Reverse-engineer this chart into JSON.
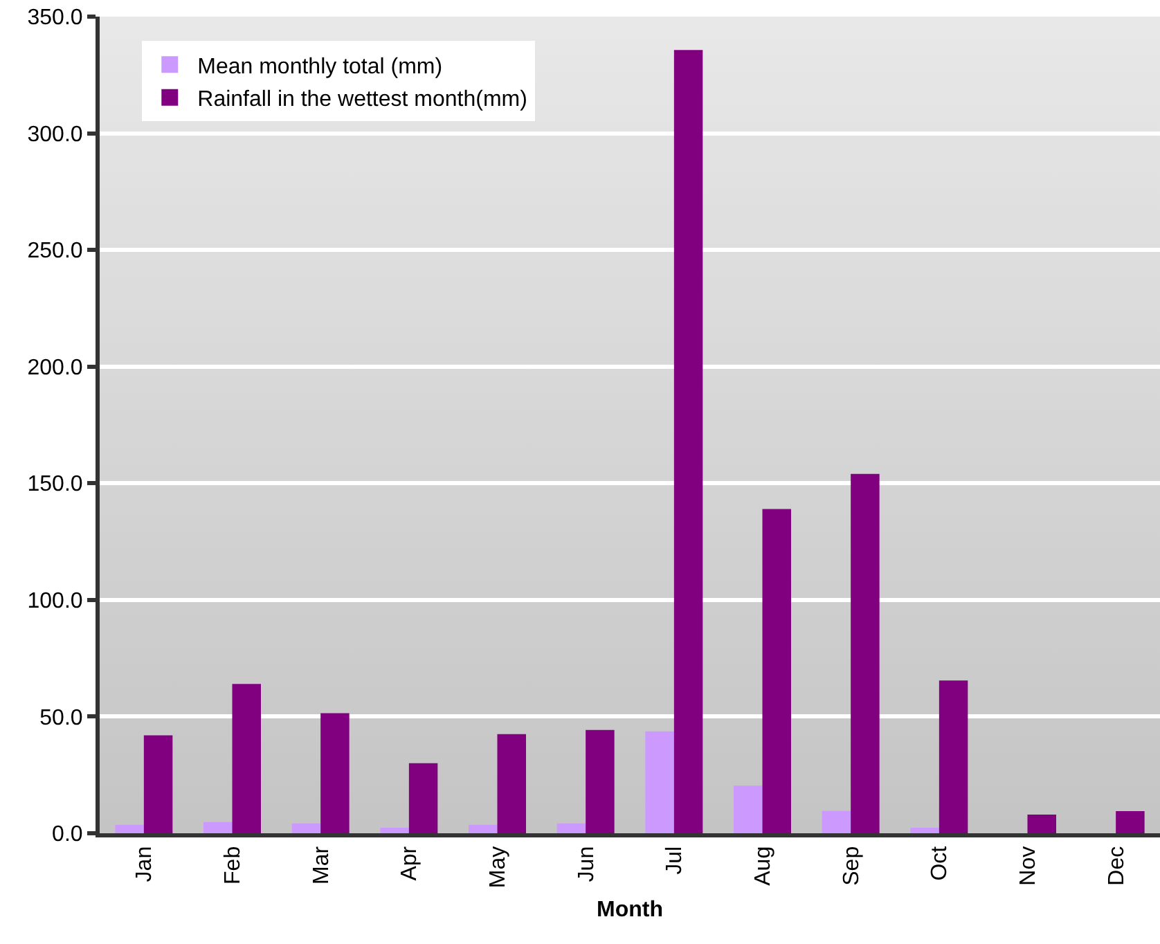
{
  "chart_data": {
    "type": "bar",
    "xlabel": "Month",
    "categories": [
      "Jan",
      "Feb",
      "Mar",
      "Apr",
      "May",
      "Jun",
      "Jul",
      "Aug",
      "Sep",
      "Oct",
      "Nov",
      "Dec"
    ],
    "series": [
      {
        "name": "Mean monthly total (mm)",
        "color": "#cc99ff",
        "values": [
          3.6,
          4.8,
          4.2,
          2.4,
          3.6,
          4.2,
          43.7,
          20.4,
          9.6,
          2.4,
          0,
          0
        ]
      },
      {
        "name": "Rainfall in the wettest month(mm)",
        "color": "#800080",
        "values": [
          42,
          64,
          51.5,
          30,
          42.5,
          44.3,
          335.7,
          139,
          154,
          65.5,
          8,
          9.5
        ]
      }
    ],
    "ylim": [
      0,
      350
    ],
    "yticks": [
      {
        "value": 0,
        "label": "0.0"
      },
      {
        "value": 50,
        "label": "50.0"
      },
      {
        "value": 100,
        "label": "100.0"
      },
      {
        "value": 150,
        "label": "150.0"
      },
      {
        "value": 200,
        "label": "200.0"
      },
      {
        "value": 250,
        "label": "250.0"
      },
      {
        "value": 300,
        "label": "300.0"
      },
      {
        "value": 350,
        "label": "350.0"
      }
    ],
    "grid": "y",
    "legend": "top left"
  }
}
